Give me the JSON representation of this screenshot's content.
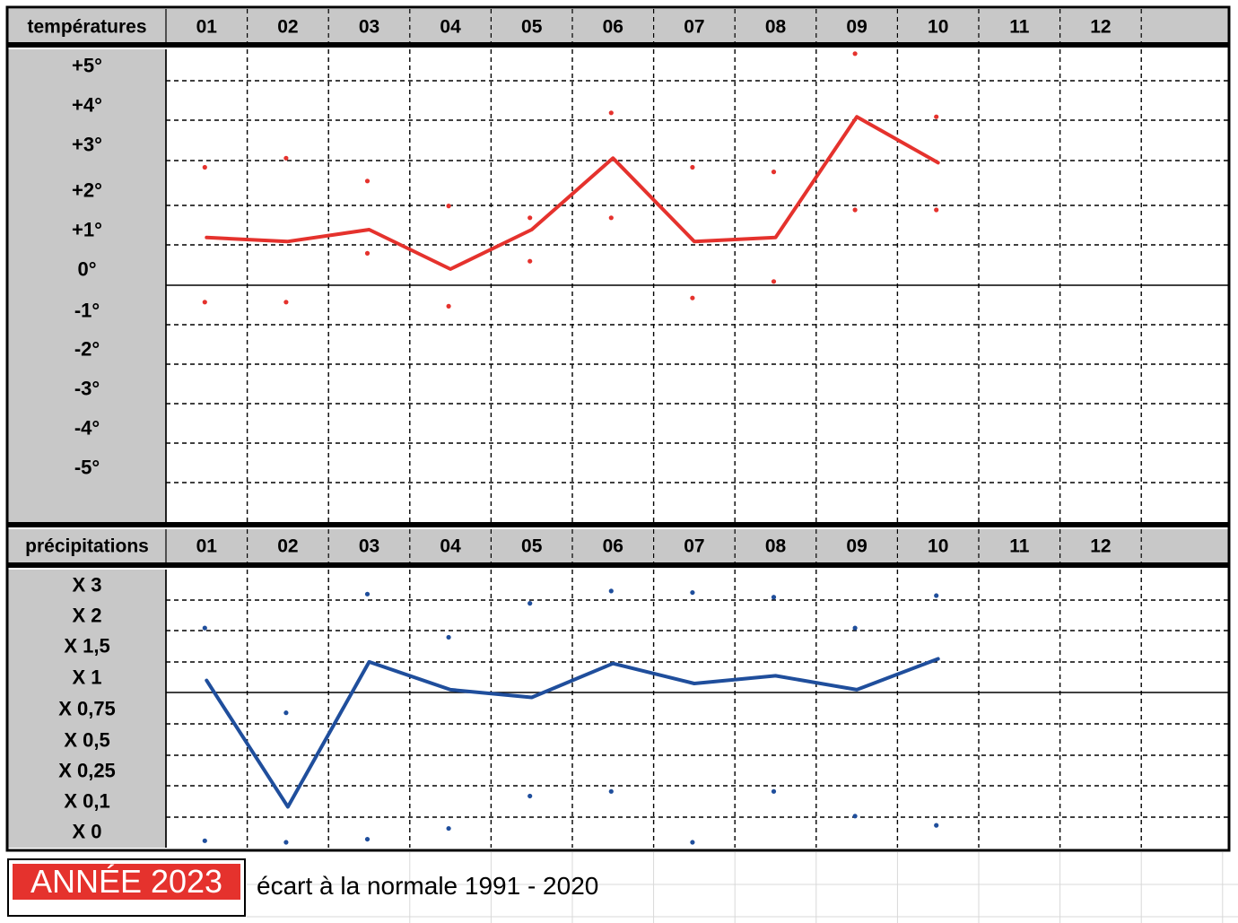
{
  "footer": {
    "year_badge": "ANNÉE 2023",
    "subtitle": "écart à la normale 1991 - 2020"
  },
  "colors": {
    "temperature": "#e5322d",
    "precipitation": "#1f4e9c",
    "header_bg": "#c8c8c8",
    "badge_bg": "#e5322d"
  },
  "chart_data": [
    {
      "type": "line",
      "header_label": "températures",
      "months": [
        "01",
        "02",
        "03",
        "04",
        "05",
        "06",
        "07",
        "08",
        "09",
        "10",
        "11",
        "12"
      ],
      "y_labels": [
        "+5°",
        "+4°",
        "+3°",
        "+2°",
        "+1°",
        "0°",
        "-1°",
        "-2°",
        "-3°",
        "-4°",
        "-5°"
      ],
      "ylim": [
        -6,
        5.5
      ],
      "grid": true,
      "series": [
        {
          "role": "mean_anomaly",
          "values": [
            0.8,
            0.7,
            1.0,
            0.0,
            1.0,
            2.7,
            0.7,
            0.8,
            3.7,
            2.6,
            null,
            null
          ]
        },
        {
          "role": "max_marker",
          "values": [
            2.5,
            2.7,
            2.2,
            1.6,
            1.3,
            3.8,
            2.5,
            2.4,
            5.3,
            3.7,
            null,
            null
          ]
        },
        {
          "role": "min_marker",
          "values": [
            -0.8,
            -0.8,
            0.4,
            -0.9,
            0.2,
            1.3,
            -0.7,
            -0.3,
            1.5,
            1.5,
            null,
            null
          ]
        }
      ]
    },
    {
      "type": "line",
      "header_label": "précipitations",
      "months": [
        "01",
        "02",
        "03",
        "04",
        "05",
        "06",
        "07",
        "08",
        "09",
        "10",
        "11",
        "12"
      ],
      "y_labels": [
        "X 3",
        "X 2",
        "X 1,5",
        "X 1",
        "X 0,75",
        "X 0,5",
        "X 0,25",
        "X 0,1",
        "X 0"
      ],
      "scale": "ordinal steps (value = position index where X 0 = 0 ... X 3 = 8)",
      "grid": true,
      "series": [
        {
          "role": "mean_ratio",
          "values": [
            4.9,
            0.8,
            5.5,
            4.6,
            4.35,
            5.45,
            4.8,
            5.05,
            4.6,
            5.6,
            null,
            null
          ]
        },
        {
          "role": "upper_marker",
          "values": [
            6.6,
            3.85,
            7.7,
            6.3,
            7.4,
            7.8,
            7.75,
            7.6,
            6.6,
            7.65,
            null,
            null
          ]
        },
        {
          "role": "lower_marker",
          "values": [
            -0.3,
            -0.35,
            -0.25,
            0.1,
            1.15,
            1.3,
            -0.35,
            1.3,
            0.5,
            0.2,
            null,
            null
          ]
        }
      ]
    }
  ]
}
